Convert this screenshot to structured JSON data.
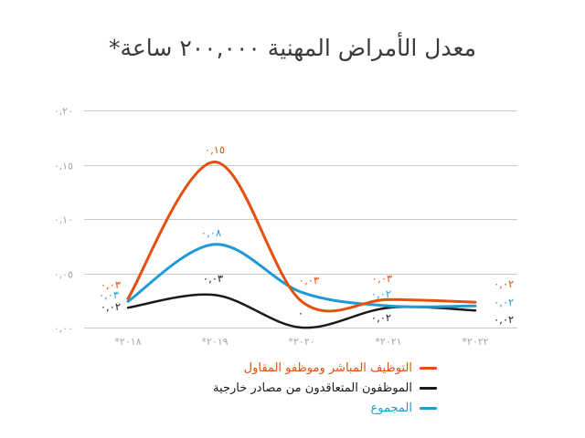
{
  "title": "معدل الأمراض المهنية ٢٠٠,٠٠٠ ساعة*",
  "colors": {
    "orange": "#E5500F",
    "black": "#1A1A1A",
    "blue": "#1E9BD6",
    "grid": "#CBCBCB",
    "axis_text": "#A4A4A4",
    "title_text": "#3A3A3A",
    "background": "#FFFFFF"
  },
  "chart_data": {
    "type": "line",
    "title": "معدل الأمراض المهنية ٢٠٠,٠٠٠ ساعة*",
    "categories": [
      "٢٠١٨*",
      "٢٠١٩*",
      "٢٠٢٠*",
      "٢٠٢١*",
      "٢٠٢٢*"
    ],
    "categories_western": [
      2018,
      2019,
      2020,
      2021,
      2022
    ],
    "ylim": [
      0,
      0.2
    ],
    "grid": true,
    "legend_position": "bottom",
    "y_ticks": [
      {
        "value": 0.0,
        "label": "٠,٠٠"
      },
      {
        "value": 0.05,
        "label": "٠,٠٥"
      },
      {
        "value": 0.1,
        "label": "٠,١٠"
      },
      {
        "value": 0.15,
        "label": "٠,١٥"
      },
      {
        "value": 0.2,
        "label": "٠,٢٠"
      }
    ],
    "series": [
      {
        "name": "التوظيف المباشر وموظفو المقاول",
        "color": "#E5500F",
        "values": [
          0.03,
          0.15,
          0.03,
          0.03,
          0.02
        ],
        "point_labels": [
          "٠,٠٣",
          "٠,١٥",
          "٠,٠٣",
          "٠,٠٣",
          "٠,٠٢"
        ]
      },
      {
        "name": "الموظفون المتعاقدون من مصادر خارجية",
        "color": "#1A1A1A",
        "values": [
          0.02,
          0.03,
          0,
          0.02,
          0.02
        ],
        "point_labels": [
          "٠,٠٢",
          "٠,٠٣",
          "٠",
          "٠,٠٢",
          "٠,٠٢"
        ]
      },
      {
        "name": "المجموع",
        "color": "#1E9BD6",
        "values": [
          0.03,
          0.08,
          0.03,
          0.02,
          0.02
        ],
        "point_labels": [
          "٠,٠٣",
          "٠,٠٨",
          "",
          "٠,٠٢",
          "٠,٠٢"
        ]
      }
    ]
  }
}
